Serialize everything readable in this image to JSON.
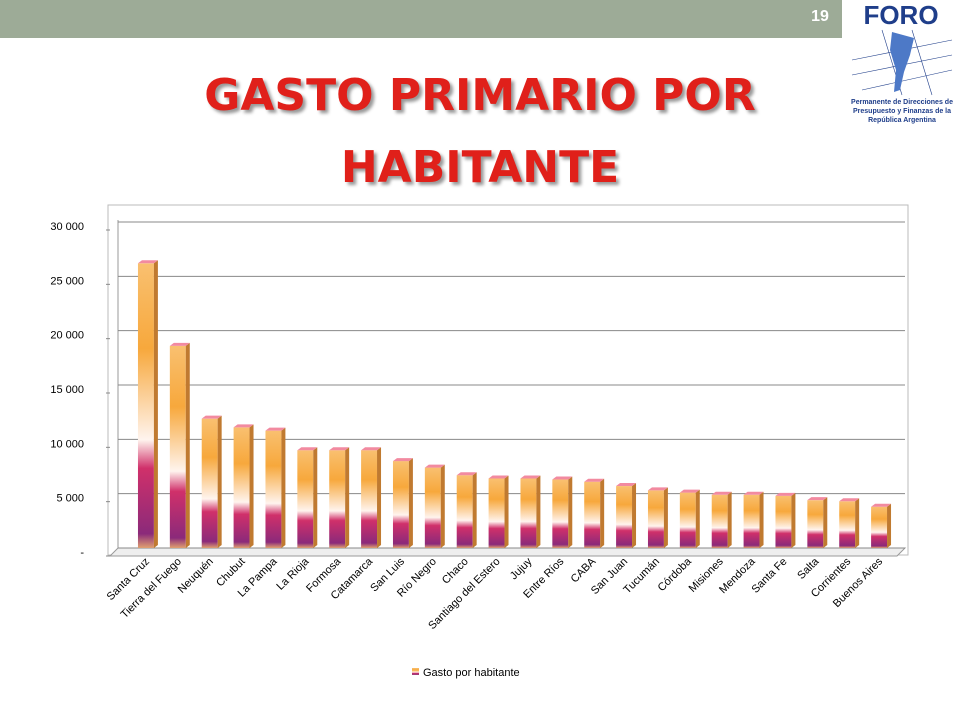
{
  "slide": {
    "number": 19,
    "logo_title": "FORO",
    "logo_subtitle": "Permanente de Direcciones de Presupuesto y Finanzas de la República Argentina"
  },
  "chart_data": {
    "type": "bar",
    "title": "GASTO PRIMARIO  POR HABITANTE",
    "categories": [
      "Santa Cruz",
      "Tierra del Fuego",
      "Neuquén",
      "Chubut",
      "La Pampa",
      "La Rioja",
      "Formosa",
      "Catamarca",
      "San Luis",
      "Río Negro",
      "Chaco",
      "Santiago del Estero",
      "Jujuy",
      "Entre Ríos",
      "CABA",
      "San Juan",
      "Tucumán",
      "Córdoba",
      "Misiones",
      "Mendoza",
      "Santa Fe",
      "Salta",
      "Corrientes",
      "Buenos Aires"
    ],
    "series": [
      {
        "name": "Gasto por  habitante",
        "color": "#f7a83c",
        "values": [
          26200,
          18600,
          11900,
          11100,
          10800,
          9000,
          9000,
          9000,
          8000,
          7400,
          6700,
          6400,
          6400,
          6300,
          6100,
          5700,
          5300,
          5100,
          4900,
          4900,
          4800,
          4400,
          4300,
          3800
        ]
      }
    ],
    "ylim": [
      0,
      30000
    ],
    "yticks": [
      {
        "value": 0,
        "label": "-"
      },
      {
        "value": 5000,
        "label": "5 000"
      },
      {
        "value": 10000,
        "label": "10 000"
      },
      {
        "value": 15000,
        "label": "15 000"
      },
      {
        "value": 20000,
        "label": "20 000"
      },
      {
        "value": 25000,
        "label": "25 000"
      },
      {
        "value": 30000,
        "label": "30 000"
      }
    ],
    "grid": true,
    "legend": "bottom"
  }
}
